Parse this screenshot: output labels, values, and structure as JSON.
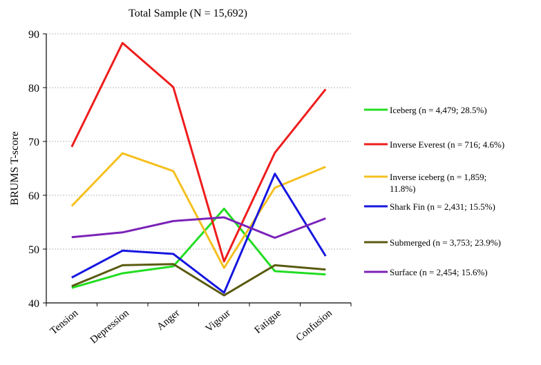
{
  "chart_data": {
    "type": "line",
    "title": "Total Sample (N = 15,692)",
    "ylabel": "BRUMS T-score",
    "xlabel": "",
    "categories": [
      "Tension",
      "Depression",
      "Anger",
      "Vigour",
      "Fatigue",
      "Confusion"
    ],
    "ylim": [
      40,
      90
    ],
    "yticks": [
      40,
      50,
      60,
      70,
      80,
      90
    ],
    "grid": true,
    "legend_position": "right",
    "series": [
      {
        "name": "Iceberg (n = 4,479; 28.5%)",
        "color": "#22dd22",
        "values": [
          42.8,
          45.5,
          46.8,
          57.5,
          45.9,
          45.3
        ]
      },
      {
        "name": "Inverse Everest (n = 716; 4.6%)",
        "color": "#ee1c1c",
        "values": [
          69.0,
          88.3,
          80.1,
          47.7,
          67.9,
          79.7
        ]
      },
      {
        "name": "Inverse iceberg (n = 1,859; 11.8%)",
        "color": "#f5c01e",
        "values": [
          58.0,
          67.8,
          64.5,
          46.5,
          61.4,
          65.3
        ]
      },
      {
        "name": "Shark Fin (n = 2,431; 15.5%)",
        "color": "#1515e0",
        "values": [
          44.7,
          49.7,
          49.1,
          41.9,
          64.0,
          48.7
        ]
      },
      {
        "name": "Submerged (n = 3,753; 23.9%)",
        "color": "#5a5a10",
        "values": [
          43.1,
          47.0,
          47.2,
          41.4,
          47.0,
          46.2
        ]
      },
      {
        "name": "Surface (n = 2,454; 15.6%)",
        "color": "#7a22b8",
        "values": [
          52.2,
          53.1,
          55.2,
          55.9,
          52.1,
          55.7
        ]
      }
    ]
  }
}
